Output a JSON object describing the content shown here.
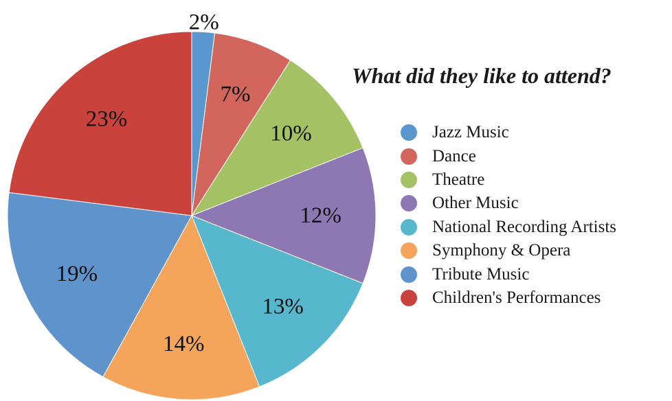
{
  "chart_data": {
    "type": "pie",
    "title": "What did they like to attend?",
    "categories": [
      "Jazz Music",
      "Dance",
      "Theatre",
      "Other Music",
      "National Recording Artists",
      "Symphony & Opera",
      "Tribute Music",
      "Children's Performances"
    ],
    "values": [
      2,
      7,
      10,
      12,
      13,
      14,
      19,
      23
    ],
    "value_labels": [
      "2%",
      "7%",
      "10%",
      "12%",
      "13%",
      "14%",
      "19%",
      "23%"
    ],
    "unit": "%",
    "colors": [
      "#5b97cf",
      "#d2665d",
      "#a4c163",
      "#8e78b4",
      "#57b7cc",
      "#f4a55b",
      "#5f93cc",
      "#c9433c"
    ],
    "legend_position": "right",
    "start_angle": "top, clockwise"
  }
}
